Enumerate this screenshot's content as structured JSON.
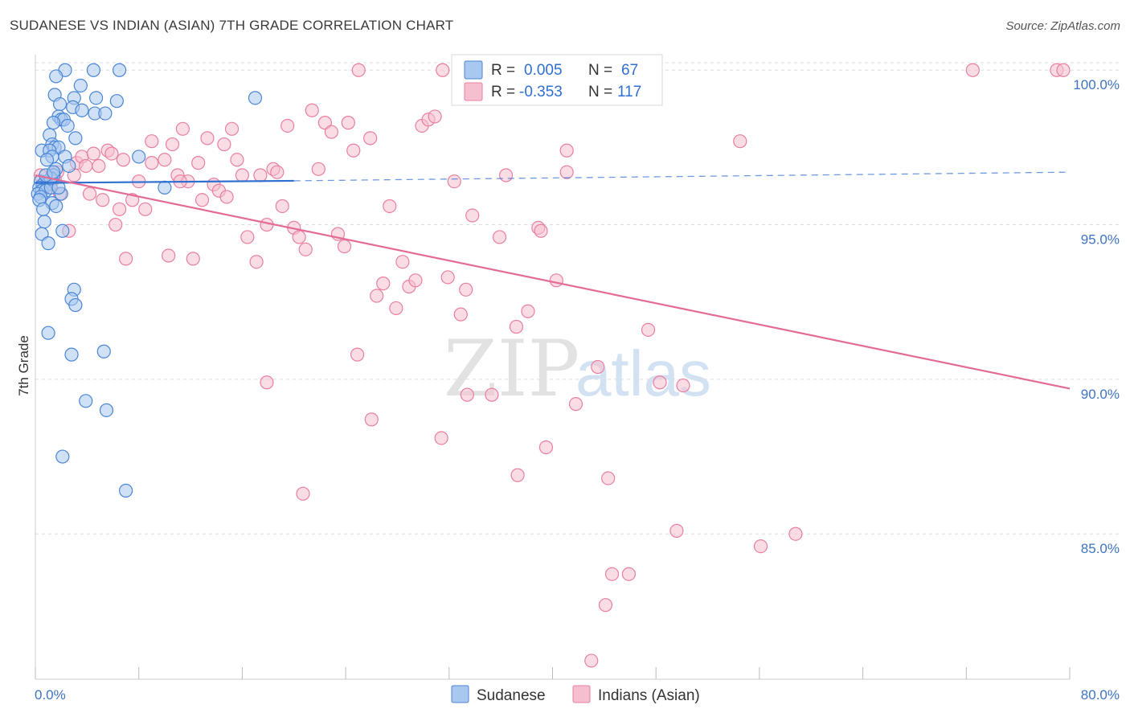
{
  "title": "SUDANESE VS INDIAN (ASIAN) 7TH GRADE CORRELATION CHART",
  "source": "Source: ZipAtlas.com",
  "watermark": {
    "zip": "ZIP",
    "atlas": "atlas"
  },
  "colors": {
    "sudanese_fill": "#a9c8ef",
    "sudanese_stroke": "#4a86d6",
    "sudanese_line": "#2f6fd0",
    "indian_fill": "#f6bfd0",
    "indian_stroke": "#e97fa0",
    "indian_line": "#e46b95",
    "grid": "#dddddd",
    "axis_text": "#3f73c4"
  },
  "legend": {
    "row1": {
      "r_label": "R =",
      "r_value": "0.005",
      "n_label": "N =",
      "n_value": "67"
    },
    "row2": {
      "r_label": "R =",
      "r_value": "-0.353",
      "n_label": "N =",
      "n_value": "117"
    }
  },
  "bottom_legend": {
    "sudanese": "Sudanese",
    "indian": "Indians (Asian)"
  },
  "chart_data": {
    "type": "scatter",
    "title": "SUDANESE VS INDIAN (ASIAN) 7TH GRADE CORRELATION CHART",
    "xlabel": "",
    "ylabel": "7th Grade",
    "xlim": [
      0,
      80
    ],
    "ylim": [
      80.3,
      100.5
    ],
    "x_tick_labels": {
      "left": "0.0%",
      "right": "80.0%"
    },
    "y_ticks": [
      {
        "value": 100,
        "label": "100.0%"
      },
      {
        "value": 95,
        "label": "95.0%"
      },
      {
        "value": 90,
        "label": "90.0%"
      },
      {
        "value": 85,
        "label": "85.0%"
      }
    ],
    "x_minor_ticks": [
      0,
      8,
      16,
      24,
      32,
      40,
      48,
      56,
      64,
      72,
      80
    ],
    "series": [
      {
        "name": "Sudanese",
        "R": 0.005,
        "N": 67,
        "trend": {
          "x0": 0,
          "y0": 96.35,
          "x1": 20,
          "y1": 96.42,
          "dashed_to_x": 80,
          "dashed_to_y": 96.7
        },
        "points": [
          [
            2.3,
            100
          ],
          [
            4.5,
            100
          ],
          [
            6.5,
            100
          ],
          [
            1.6,
            99.8
          ],
          [
            3.5,
            99.5
          ],
          [
            1.5,
            99.2
          ],
          [
            3,
            99.1
          ],
          [
            4.7,
            99.1
          ],
          [
            6.3,
            99
          ],
          [
            17,
            99.1
          ],
          [
            2.9,
            98.8
          ],
          [
            3.6,
            98.7
          ],
          [
            1.9,
            98.9
          ],
          [
            4.6,
            98.6
          ],
          [
            5.4,
            98.6
          ],
          [
            1.8,
            98.5
          ],
          [
            2,
            98.4
          ],
          [
            2.2,
            98.4
          ],
          [
            1.4,
            98.3
          ],
          [
            2.5,
            98.2
          ],
          [
            1.1,
            97.9
          ],
          [
            3.1,
            97.8
          ],
          [
            1.3,
            97.6
          ],
          [
            1.5,
            97.5
          ],
          [
            1.8,
            97.5
          ],
          [
            0.5,
            97.4
          ],
          [
            1.1,
            97.4
          ],
          [
            1.3,
            97.2
          ],
          [
            0.9,
            97.1
          ],
          [
            2.3,
            97.2
          ],
          [
            8,
            97.2
          ],
          [
            1.6,
            96.8
          ],
          [
            1.4,
            96.6
          ],
          [
            0.4,
            96.4
          ],
          [
            0.6,
            96.3
          ],
          [
            0.9,
            96.3
          ],
          [
            0.3,
            96.2
          ],
          [
            0.5,
            96.1
          ],
          [
            0.2,
            96
          ],
          [
            0.8,
            96.1
          ],
          [
            1.2,
            96.2
          ],
          [
            10,
            96.2
          ],
          [
            0.4,
            95.9
          ],
          [
            0.3,
            95.8
          ],
          [
            1.3,
            95.7
          ],
          [
            1.6,
            95.6
          ],
          [
            2,
            96
          ],
          [
            0.7,
            95.1
          ],
          [
            2.1,
            94.8
          ],
          [
            0.5,
            94.7
          ],
          [
            1,
            94.4
          ],
          [
            3,
            92.9
          ],
          [
            2.8,
            92.6
          ],
          [
            3.1,
            92.4
          ],
          [
            1,
            91.5
          ],
          [
            2.8,
            90.8
          ],
          [
            5.3,
            90.9
          ],
          [
            3.9,
            89.3
          ],
          [
            5.5,
            89
          ],
          [
            2.1,
            87.5
          ],
          [
            7,
            86.4
          ],
          [
            1.2,
            96.5
          ],
          [
            0.8,
            96.6
          ],
          [
            1.8,
            96.2
          ],
          [
            0.6,
            95.5
          ],
          [
            1.4,
            96.7
          ],
          [
            2.6,
            96.9
          ]
        ]
      },
      {
        "name": "Indians (Asian)",
        "R": -0.353,
        "N": 117,
        "trend": {
          "x0": 0,
          "y0": 96.6,
          "x1": 80,
          "y1": 89.7
        },
        "points": [
          [
            25,
            100
          ],
          [
            31.5,
            100
          ],
          [
            46,
            100
          ],
          [
            72.5,
            100
          ],
          [
            79,
            100
          ],
          [
            79.5,
            100
          ],
          [
            0.4,
            96.6
          ],
          [
            0.7,
            96.2
          ],
          [
            1.1,
            96.3
          ],
          [
            1.5,
            96.5
          ],
          [
            1.7,
            96.7
          ],
          [
            1.9,
            96
          ],
          [
            2.6,
            94.8
          ],
          [
            3.2,
            97
          ],
          [
            3.6,
            97.2
          ],
          [
            3.9,
            96.9
          ],
          [
            4.2,
            96
          ],
          [
            4.5,
            97.3
          ],
          [
            4.9,
            96.9
          ],
          [
            5.2,
            95.8
          ],
          [
            5.6,
            97.4
          ],
          [
            5.9,
            97.3
          ],
          [
            6.2,
            95
          ],
          [
            6.5,
            95.5
          ],
          [
            7,
            93.9
          ],
          [
            7.5,
            95.8
          ],
          [
            8,
            96.4
          ],
          [
            8.5,
            95.5
          ],
          [
            9,
            97.7
          ],
          [
            9,
            97
          ],
          [
            10,
            97.1
          ],
          [
            10.3,
            94
          ],
          [
            10.6,
            97.6
          ],
          [
            11,
            96.6
          ],
          [
            11.4,
            98.1
          ],
          [
            11.8,
            96.4
          ],
          [
            12.2,
            93.9
          ],
          [
            12.6,
            97
          ],
          [
            12.9,
            95.8
          ],
          [
            13.3,
            97.8
          ],
          [
            13.8,
            96.3
          ],
          [
            14.2,
            96.1
          ],
          [
            14.6,
            97.6
          ],
          [
            15.2,
            98.1
          ],
          [
            15.6,
            97.1
          ],
          [
            16,
            96.6
          ],
          [
            16.4,
            94.6
          ],
          [
            17.1,
            93.8
          ],
          [
            17.4,
            96.6
          ],
          [
            17.9,
            95
          ],
          [
            18.4,
            96.8
          ],
          [
            18.7,
            96.7
          ],
          [
            19.1,
            95.6
          ],
          [
            19.5,
            98.2
          ],
          [
            20,
            94.9
          ],
          [
            20.4,
            94.6
          ],
          [
            20.9,
            94.2
          ],
          [
            21.4,
            98.7
          ],
          [
            21.9,
            96.8
          ],
          [
            22.4,
            98.3
          ],
          [
            22.9,
            98
          ],
          [
            23.4,
            94.7
          ],
          [
            23.9,
            94.3
          ],
          [
            24.2,
            98.3
          ],
          [
            24.6,
            97.4
          ],
          [
            24.9,
            90.8
          ],
          [
            25.9,
            97.8
          ],
          [
            26,
            88.7
          ],
          [
            26.4,
            92.7
          ],
          [
            26.9,
            93.1
          ],
          [
            27.4,
            95.6
          ],
          [
            27.9,
            92.3
          ],
          [
            28.4,
            93.8
          ],
          [
            28.9,
            93
          ],
          [
            29.4,
            93.2
          ],
          [
            29.9,
            98.2
          ],
          [
            30.4,
            98.4
          ],
          [
            30.9,
            98.5
          ],
          [
            31.4,
            88.1
          ],
          [
            31.9,
            93.3
          ],
          [
            32.4,
            96.4
          ],
          [
            32.9,
            92.1
          ],
          [
            33.3,
            92.9
          ],
          [
            33.4,
            89.5
          ],
          [
            33.8,
            95.3
          ],
          [
            35.3,
            89.5
          ],
          [
            35.9,
            94.6
          ],
          [
            36.4,
            96.6
          ],
          [
            37.2,
            91.7
          ],
          [
            37.3,
            86.9
          ],
          [
            38.1,
            92.2
          ],
          [
            38.9,
            94.9
          ],
          [
            39.1,
            94.8
          ],
          [
            39.5,
            87.8
          ],
          [
            40.3,
            93.2
          ],
          [
            41.1,
            97.4
          ],
          [
            41.1,
            96.7
          ],
          [
            41.8,
            89.2
          ],
          [
            43,
            80.9
          ],
          [
            43.5,
            90.4
          ],
          [
            44.1,
            82.7
          ],
          [
            44.3,
            86.8
          ],
          [
            44.6,
            83.7
          ],
          [
            45.9,
            83.7
          ],
          [
            47.4,
            91.6
          ],
          [
            48.3,
            89.9
          ],
          [
            49.6,
            85.1
          ],
          [
            50.1,
            89.8
          ],
          [
            54.5,
            97.7
          ],
          [
            56.1,
            84.6
          ],
          [
            58.8,
            85
          ],
          [
            11.2,
            96.4
          ],
          [
            14.8,
            95.9
          ],
          [
            6.8,
            97.1
          ],
          [
            3,
            96.6
          ],
          [
            20.7,
            86.3
          ],
          [
            17.9,
            89.9
          ]
        ]
      }
    ]
  }
}
